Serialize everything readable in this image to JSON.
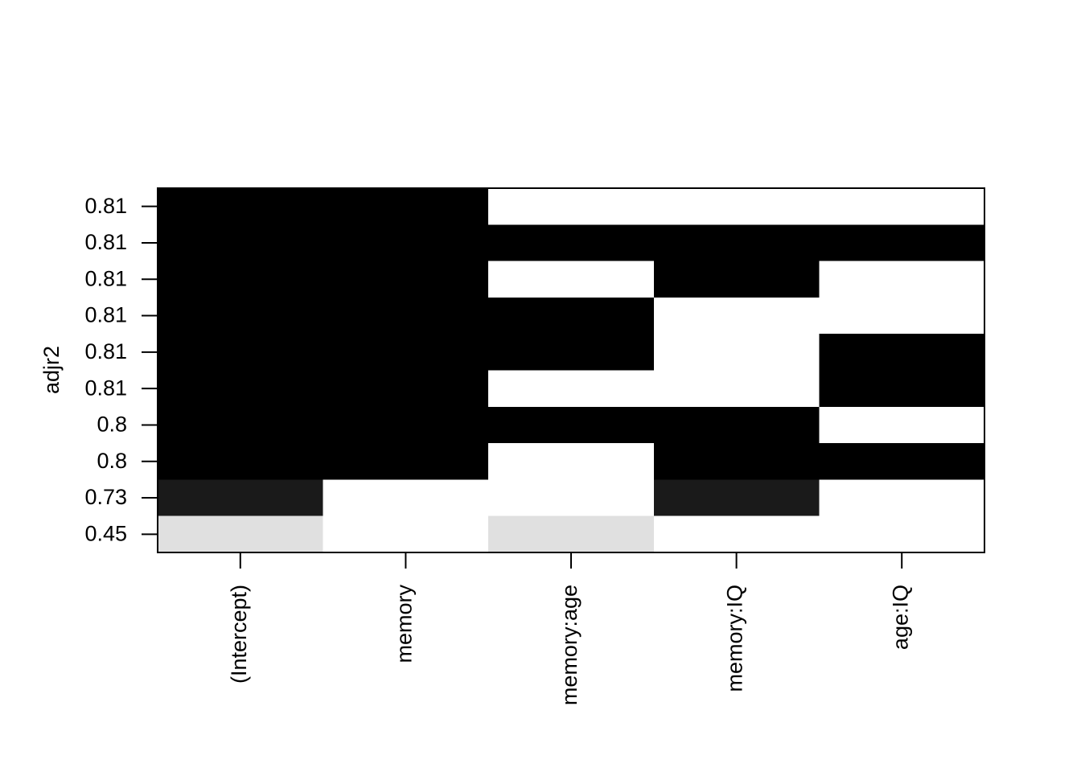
{
  "chart_data": {
    "type": "heatmap",
    "ylabel": "adjr2",
    "columns": [
      "(Intercept)",
      "memory",
      "memory:age",
      "memory:IQ",
      "age:IQ"
    ],
    "rows": [
      "0.81",
      "0.81",
      "0.81",
      "0.81",
      "0.81",
      "0.81",
      "0.8",
      "0.8",
      "0.73",
      "0.45"
    ],
    "row_colors": [
      "#000000",
      "#000000",
      "#000000",
      "#000000",
      "#000000",
      "#000000",
      "#000000",
      "#000000",
      "#1a1a1a",
      "#e0e0e0"
    ],
    "empty_color": "#ffffff",
    "matrix": [
      [
        1,
        1,
        0,
        0,
        0
      ],
      [
        1,
        1,
        1,
        1,
        1
      ],
      [
        1,
        1,
        0,
        1,
        0
      ],
      [
        1,
        1,
        1,
        0,
        0
      ],
      [
        1,
        1,
        1,
        0,
        1
      ],
      [
        1,
        1,
        0,
        0,
        1
      ],
      [
        1,
        1,
        1,
        1,
        0
      ],
      [
        1,
        1,
        0,
        1,
        1
      ],
      [
        1,
        0,
        0,
        1,
        0
      ],
      [
        1,
        0,
        1,
        0,
        0
      ]
    ]
  }
}
